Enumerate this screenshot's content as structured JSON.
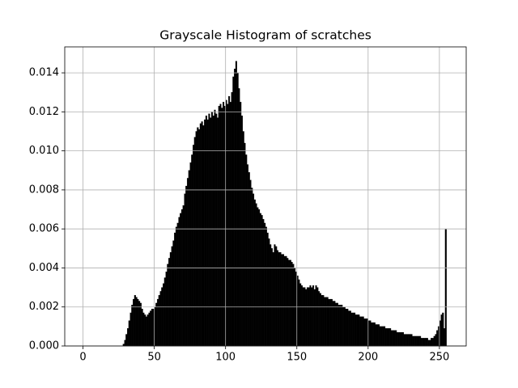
{
  "chart_data": {
    "type": "histogram",
    "title": "Grayscale Histogram of scratches",
    "color": "#000000",
    "grid": true,
    "xlim": [
      -12.8,
      268.8
    ],
    "ylim": [
      0,
      0.01533
    ],
    "xticks": [
      0,
      50,
      100,
      150,
      200,
      250
    ],
    "yticks": [
      {
        "value": 0,
        "label": "0.000"
      },
      {
        "value": 0.002,
        "label": "0.002"
      },
      {
        "value": 0.004,
        "label": "0.004"
      },
      {
        "value": 0.006,
        "label": "0.006"
      },
      {
        "value": 0.008,
        "label": "0.008"
      },
      {
        "value": 0.01,
        "label": "0.010"
      },
      {
        "value": 0.012,
        "label": "0.012"
      },
      {
        "value": 0.014,
        "label": "0.014"
      }
    ],
    "bins": [
      0,
      1,
      2,
      3,
      4,
      5,
      6,
      7,
      8,
      9,
      10,
      11,
      12,
      13,
      14,
      15,
      16,
      17,
      18,
      19,
      20,
      21,
      22,
      23,
      24,
      25,
      26,
      27,
      28,
      29,
      30,
      31,
      32,
      33,
      34,
      35,
      36,
      37,
      38,
      39,
      40,
      41,
      42,
      43,
      44,
      45,
      46,
      47,
      48,
      49,
      50,
      51,
      52,
      53,
      54,
      55,
      56,
      57,
      58,
      59,
      60,
      61,
      62,
      63,
      64,
      65,
      66,
      67,
      68,
      69,
      70,
      71,
      72,
      73,
      74,
      75,
      76,
      77,
      78,
      79,
      80,
      81,
      82,
      83,
      84,
      85,
      86,
      87,
      88,
      89,
      90,
      91,
      92,
      93,
      94,
      95,
      96,
      97,
      98,
      99,
      100,
      101,
      102,
      103,
      104,
      105,
      106,
      107,
      108,
      109,
      110,
      111,
      112,
      113,
      114,
      115,
      116,
      117,
      118,
      119,
      120,
      121,
      122,
      123,
      124,
      125,
      126,
      127,
      128,
      129,
      130,
      131,
      132,
      133,
      134,
      135,
      136,
      137,
      138,
      139,
      140,
      141,
      142,
      143,
      144,
      145,
      146,
      147,
      148,
      149,
      150,
      151,
      152,
      153,
      154,
      155,
      156,
      157,
      158,
      159,
      160,
      161,
      162,
      163,
      164,
      165,
      166,
      167,
      168,
      169,
      170,
      171,
      172,
      173,
      174,
      175,
      176,
      177,
      178,
      179,
      180,
      181,
      182,
      183,
      184,
      185,
      186,
      187,
      188,
      189,
      190,
      191,
      192,
      193,
      194,
      195,
      196,
      197,
      198,
      199,
      200,
      201,
      202,
      203,
      204,
      205,
      206,
      207,
      208,
      209,
      210,
      211,
      212,
      213,
      214,
      215,
      216,
      217,
      218,
      219,
      220,
      221,
      222,
      223,
      224,
      225,
      226,
      227,
      228,
      229,
      230,
      231,
      232,
      233,
      234,
      235,
      236,
      237,
      238,
      239,
      240,
      241,
      242,
      243,
      244,
      245,
      246,
      247,
      248,
      249,
      250,
      251,
      252,
      253,
      254,
      255,
      256
    ],
    "counts": [
      0,
      0,
      0,
      0,
      0,
      0,
      0,
      0,
      0,
      0,
      0,
      0,
      0,
      0,
      0,
      0,
      0,
      0,
      0,
      0,
      0,
      0,
      0,
      0,
      0,
      0,
      0,
      0,
      0.0001,
      0.0003,
      0.0006,
      0.0009,
      0.0013,
      0.0017,
      0.0021,
      0.0024,
      0.0026,
      0.0025,
      0.0024,
      0.0023,
      0.0022,
      0.0019,
      0.0017,
      0.0016,
      0.0015,
      0.0016,
      0.0017,
      0.0018,
      0.0019,
      0.0019,
      0.002,
      0.0022,
      0.0024,
      0.0026,
      0.0028,
      0.003,
      0.0032,
      0.0035,
      0.0038,
      0.0042,
      0.0045,
      0.0048,
      0.0051,
      0.0054,
      0.0058,
      0.0061,
      0.0063,
      0.0066,
      0.0068,
      0.007,
      0.0072,
      0.0078,
      0.0082,
      0.0086,
      0.009,
      0.0094,
      0.0098,
      0.0103,
      0.0107,
      0.011,
      0.0112,
      0.0111,
      0.0114,
      0.0115,
      0.0113,
      0.0116,
      0.0118,
      0.0116,
      0.0119,
      0.0117,
      0.012,
      0.0118,
      0.0121,
      0.0119,
      0.0117,
      0.0123,
      0.0124,
      0.0122,
      0.0125,
      0.0123,
      0.0126,
      0.0124,
      0.0128,
      0.0125,
      0.013,
      0.0138,
      0.0142,
      0.0146,
      0.014,
      0.0132,
      0.0125,
      0.0118,
      0.011,
      0.0104,
      0.0098,
      0.0093,
      0.0089,
      0.0085,
      0.0081,
      0.0078,
      0.0075,
      0.0073,
      0.0071,
      0.007,
      0.0068,
      0.0067,
      0.0065,
      0.0063,
      0.0061,
      0.0058,
      0.0055,
      0.0052,
      0.005,
      0.0048,
      0.0052,
      0.0051,
      0.0049,
      0.0048,
      0.0048,
      0.0047,
      0.0047,
      0.0046,
      0.0046,
      0.0045,
      0.0044,
      0.0044,
      0.0043,
      0.0042,
      0.004,
      0.0038,
      0.0036,
      0.0034,
      0.0032,
      0.0031,
      0.003,
      0.003,
      0.0029,
      0.003,
      0.003,
      0.0031,
      0.003,
      0.0031,
      0.0029,
      0.0031,
      0.003,
      0.0028,
      0.0027,
      0.0026,
      0.0026,
      0.0025,
      0.0025,
      0.0025,
      0.0024,
      0.0024,
      0.0024,
      0.0023,
      0.0023,
      0.0022,
      0.0022,
      0.0021,
      0.0021,
      0.0021,
      0.002,
      0.002,
      0.0019,
      0.0019,
      0.0018,
      0.0018,
      0.0017,
      0.0017,
      0.0017,
      0.0016,
      0.0016,
      0.0016,
      0.0015,
      0.0015,
      0.0015,
      0.0014,
      0.0014,
      0.0014,
      0.0013,
      0.0013,
      0.0012,
      0.0012,
      0.0012,
      0.0011,
      0.0011,
      0.0011,
      0.001,
      0.001,
      0.001,
      0.001,
      0.0009,
      0.0009,
      0.0009,
      0.0009,
      0.0008,
      0.0008,
      0.0008,
      0.0008,
      0.0007,
      0.0007,
      0.0007,
      0.0007,
      0.0007,
      0.0006,
      0.0006,
      0.0006,
      0.0006,
      0.0006,
      0.0006,
      0.0005,
      0.0005,
      0.0005,
      0.0005,
      0.0005,
      0.0005,
      0.0004,
      0.0004,
      0.0004,
      0.0004,
      0.0004,
      0.0003,
      0.0003,
      0.0004,
      0.0004,
      0.0005,
      0.0006,
      0.0008,
      0.001,
      0.0013,
      0.0016,
      0.0017,
      0.0009,
      0.006,
      0
    ]
  }
}
